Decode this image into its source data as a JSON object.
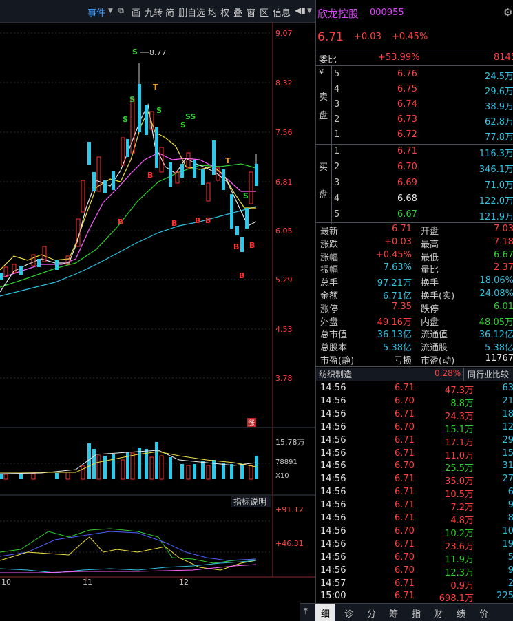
{
  "toolbar": {
    "items": [
      "事件",
      "画",
      "九转",
      "简",
      "删自选",
      "均",
      "权",
      "叠",
      "窗",
      "区",
      "信息"
    ],
    "event_label": "事件"
  },
  "chart": {
    "price_labels": [
      "9.07",
      "8.32",
      "7.56",
      "6.81",
      "6.05",
      "5.29",
      "4.53",
      "3.78"
    ],
    "high_marker": "8.77",
    "limit_up_badge": "涨",
    "volume_labels": [
      "15.78万",
      "78891",
      "X10"
    ],
    "indicator_title": "指标说明",
    "indicator_labels": [
      "+91.12",
      "+46.31"
    ],
    "date_labels": [
      "10",
      "11",
      "12"
    ]
  },
  "stock": {
    "name": "欣龙控股",
    "code": "000955",
    "price": "6.71",
    "change": "+0.03",
    "change_pct": "+0.45%"
  },
  "orderbook": {
    "ratio_label": "委比",
    "ratio_value": "+53.99%",
    "ratio_diff": "8145",
    "sell_label_a": "¥",
    "sell_label_b": "卖",
    "sell_label_c": "盘",
    "buy_label_a": "买",
    "buy_label_b": "盘",
    "sell": [
      {
        "level": "5",
        "price": "6.76",
        "vol": "24.5万"
      },
      {
        "level": "4",
        "price": "6.75",
        "vol": "29.6万"
      },
      {
        "level": "3",
        "price": "6.74",
        "vol": "38.9万"
      },
      {
        "level": "2",
        "price": "6.73",
        "vol": "62.8万"
      },
      {
        "level": "1",
        "price": "6.72",
        "vol": "77.8万"
      }
    ],
    "buy": [
      {
        "level": "1",
        "price": "6.71",
        "vol": "116.3万"
      },
      {
        "level": "2",
        "price": "6.70",
        "vol": "346.1万"
      },
      {
        "level": "3",
        "price": "6.69",
        "vol": "71.0万"
      },
      {
        "level": "4",
        "price": "6.68",
        "vol": "122.0万"
      },
      {
        "level": "5",
        "price": "6.67",
        "vol": "121.9万"
      }
    ]
  },
  "stats": [
    {
      "k1": "最新",
      "v1": "6.71",
      "c1": "red",
      "k2": "开盘",
      "v2": "7.03",
      "c2": "red"
    },
    {
      "k1": "涨跌",
      "v1": "+0.03",
      "c1": "red",
      "k2": "最高",
      "v2": "7.18",
      "c2": "red"
    },
    {
      "k1": "涨幅",
      "v1": "+0.45%",
      "c1": "red",
      "k2": "最低",
      "v2": "6.67",
      "c2": "grn"
    },
    {
      "k1": "振幅",
      "v1": "7.63%",
      "c1": "cy",
      "k2": "量比",
      "v2": "2.37",
      "c2": "red"
    },
    {
      "k1": "总手",
      "v1": "97.21万",
      "c1": "cy",
      "k2": "换手",
      "v2": "18.06%",
      "c2": "cy"
    },
    {
      "k1": "金额",
      "v1": "6.71亿",
      "c1": "cy",
      "k2": "换手(实)",
      "v2": "24.08%",
      "c2": "cy"
    },
    {
      "k1": "涨停",
      "v1": "7.35",
      "c1": "red",
      "k2": "跌停",
      "v2": "6.01",
      "c2": "grn"
    },
    {
      "k1": "外盘",
      "v1": "49.16万",
      "c1": "red",
      "k2": "内盘",
      "v2": "48.05万",
      "c2": "grn"
    },
    {
      "k1": "总市值",
      "v1": "36.13亿",
      "c1": "cy",
      "k2": "流通值",
      "v2": "36.12亿",
      "c2": "cy"
    },
    {
      "k1": "总股本",
      "v1": "5.38亿",
      "c1": "cy",
      "k2": "流通股",
      "v2": "5.38亿",
      "c2": "cy"
    },
    {
      "k1": "市盈(静)",
      "v1": "亏损",
      "c1": "wht",
      "k2": "市盈(动)",
      "v2": "11767",
      "c2": "wht"
    }
  ],
  "sector": {
    "name": "纺织制造",
    "pct": "0.28%",
    "compare": "同行业比较"
  },
  "ticks": [
    {
      "t": "14:56",
      "p": "6.71",
      "pc": "red",
      "v": "47.3万",
      "vc": "red",
      "n": "63"
    },
    {
      "t": "14:56",
      "p": "6.70",
      "pc": "red",
      "v": "8.8万",
      "vc": "grn",
      "n": "21"
    },
    {
      "t": "14:56",
      "p": "6.71",
      "pc": "red",
      "v": "24.3万",
      "vc": "red",
      "n": "18"
    },
    {
      "t": "14:56",
      "p": "6.70",
      "pc": "red",
      "v": "15.1万",
      "vc": "grn",
      "n": "12"
    },
    {
      "t": "14:56",
      "p": "6.71",
      "pc": "red",
      "v": "17.1万",
      "vc": "red",
      "n": "29"
    },
    {
      "t": "14:56",
      "p": "6.71",
      "pc": "red",
      "v": "11.0万",
      "vc": "red",
      "n": "15"
    },
    {
      "t": "14:56",
      "p": "6.70",
      "pc": "red",
      "v": "25.5万",
      "vc": "grn",
      "n": "31"
    },
    {
      "t": "14:56",
      "p": "6.71",
      "pc": "red",
      "v": "35.0万",
      "vc": "red",
      "n": "27"
    },
    {
      "t": "14:56",
      "p": "6.71",
      "pc": "red",
      "v": "10.5万",
      "vc": "red",
      "n": "6"
    },
    {
      "t": "14:56",
      "p": "6.71",
      "pc": "red",
      "v": "7.2万",
      "vc": "red",
      "n": "9"
    },
    {
      "t": "14:56",
      "p": "6.71",
      "pc": "red",
      "v": "4.8万",
      "vc": "red",
      "n": "8"
    },
    {
      "t": "14:56",
      "p": "6.70",
      "pc": "red",
      "v": "10.2万",
      "vc": "grn",
      "n": "10"
    },
    {
      "t": "14:56",
      "p": "6.71",
      "pc": "red",
      "v": "23.6万",
      "vc": "red",
      "n": "19"
    },
    {
      "t": "14:56",
      "p": "6.70",
      "pc": "red",
      "v": "11.9万",
      "vc": "grn",
      "n": "5"
    },
    {
      "t": "14:56",
      "p": "6.70",
      "pc": "red",
      "v": "12.3万",
      "vc": "grn",
      "n": "9"
    },
    {
      "t": "14:57",
      "p": "6.71",
      "pc": "red",
      "v": "0.9万",
      "vc": "red",
      "n": "2"
    },
    {
      "t": "15:00",
      "p": "6.71",
      "pc": "red",
      "v": "698.1万",
      "vc": "red",
      "n": "225"
    }
  ],
  "bottom_tabs": [
    "细",
    "诊",
    "分",
    "筹",
    "指",
    "财",
    "绩",
    "价"
  ]
}
